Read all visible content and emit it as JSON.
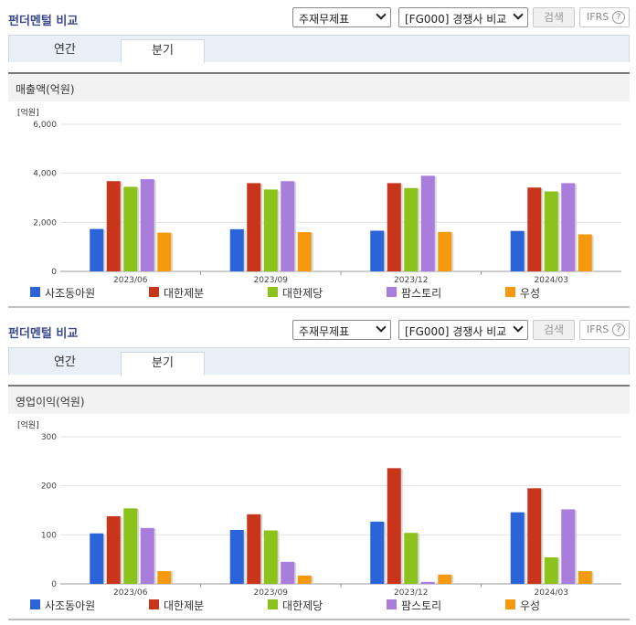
{
  "panels": [
    {
      "title": "펀더멘털 비교",
      "select1": "주재무제표",
      "select2": "[FG000] 경쟁사 비교",
      "search_label": "검색",
      "ifrs_label": "IFRS",
      "help_glyph": "?",
      "tabs": [
        {
          "label": "연간"
        },
        {
          "label": "분기"
        }
      ],
      "active_tab": 1,
      "metric_title": "매출액(억원)"
    },
    {
      "title": "펀더멘털 비교",
      "select1": "주재무제표",
      "select2": "[FG000] 경쟁사 비교",
      "search_label": "검색",
      "ifrs_label": "IFRS",
      "help_glyph": "?",
      "tabs": [
        {
          "label": "연간"
        },
        {
          "label": "분기"
        }
      ],
      "active_tab": 1,
      "metric_title": "영업이익(억원)"
    }
  ],
  "chart_data": [
    {
      "type": "bar",
      "unit_label": "[억원]",
      "categories": [
        "2023/06",
        "2023/09",
        "2023/12",
        "2024/03"
      ],
      "ylim": [
        0,
        6000
      ],
      "yticks": [
        0,
        2000,
        4000,
        6000
      ],
      "ytick_labels": [
        "0",
        "2,000",
        "4,000",
        "6,000"
      ],
      "grid": true,
      "legend_position": "bottom",
      "series": [
        {
          "name": "사조동아원",
          "color": "#2b63d9",
          "values": [
            1730,
            1720,
            1660,
            1650
          ]
        },
        {
          "name": "대한제분",
          "color": "#c8351a",
          "values": [
            3680,
            3600,
            3600,
            3420
          ]
        },
        {
          "name": "대한제당",
          "color": "#8cc21c",
          "values": [
            3450,
            3340,
            3400,
            3260
          ]
        },
        {
          "name": "팜스토리",
          "color": "#a97ddc",
          "values": [
            3760,
            3680,
            3900,
            3600
          ]
        },
        {
          "name": "우성",
          "color": "#f59a0e",
          "values": [
            1580,
            1600,
            1610,
            1510
          ]
        }
      ]
    },
    {
      "type": "bar",
      "unit_label": "[억원]",
      "categories": [
        "2023/06",
        "2023/09",
        "2023/12",
        "2024/03"
      ],
      "ylim": [
        0,
        300
      ],
      "yticks": [
        0,
        100,
        200,
        300
      ],
      "ytick_labels": [
        "0",
        "100",
        "200",
        "300"
      ],
      "grid": true,
      "legend_position": "bottom",
      "series": [
        {
          "name": "사조동아원",
          "color": "#2b63d9",
          "values": [
            103,
            110,
            127,
            146
          ]
        },
        {
          "name": "대한제분",
          "color": "#c8351a",
          "values": [
            138,
            142,
            236,
            195
          ]
        },
        {
          "name": "대한제당",
          "color": "#8cc21c",
          "values": [
            154,
            109,
            104,
            54
          ]
        },
        {
          "name": "팜스토리",
          "color": "#a97ddc",
          "values": [
            114,
            45,
            4,
            152
          ]
        },
        {
          "name": "우성",
          "color": "#f59a0e",
          "values": [
            26,
            17,
            19,
            26
          ]
        }
      ]
    }
  ]
}
